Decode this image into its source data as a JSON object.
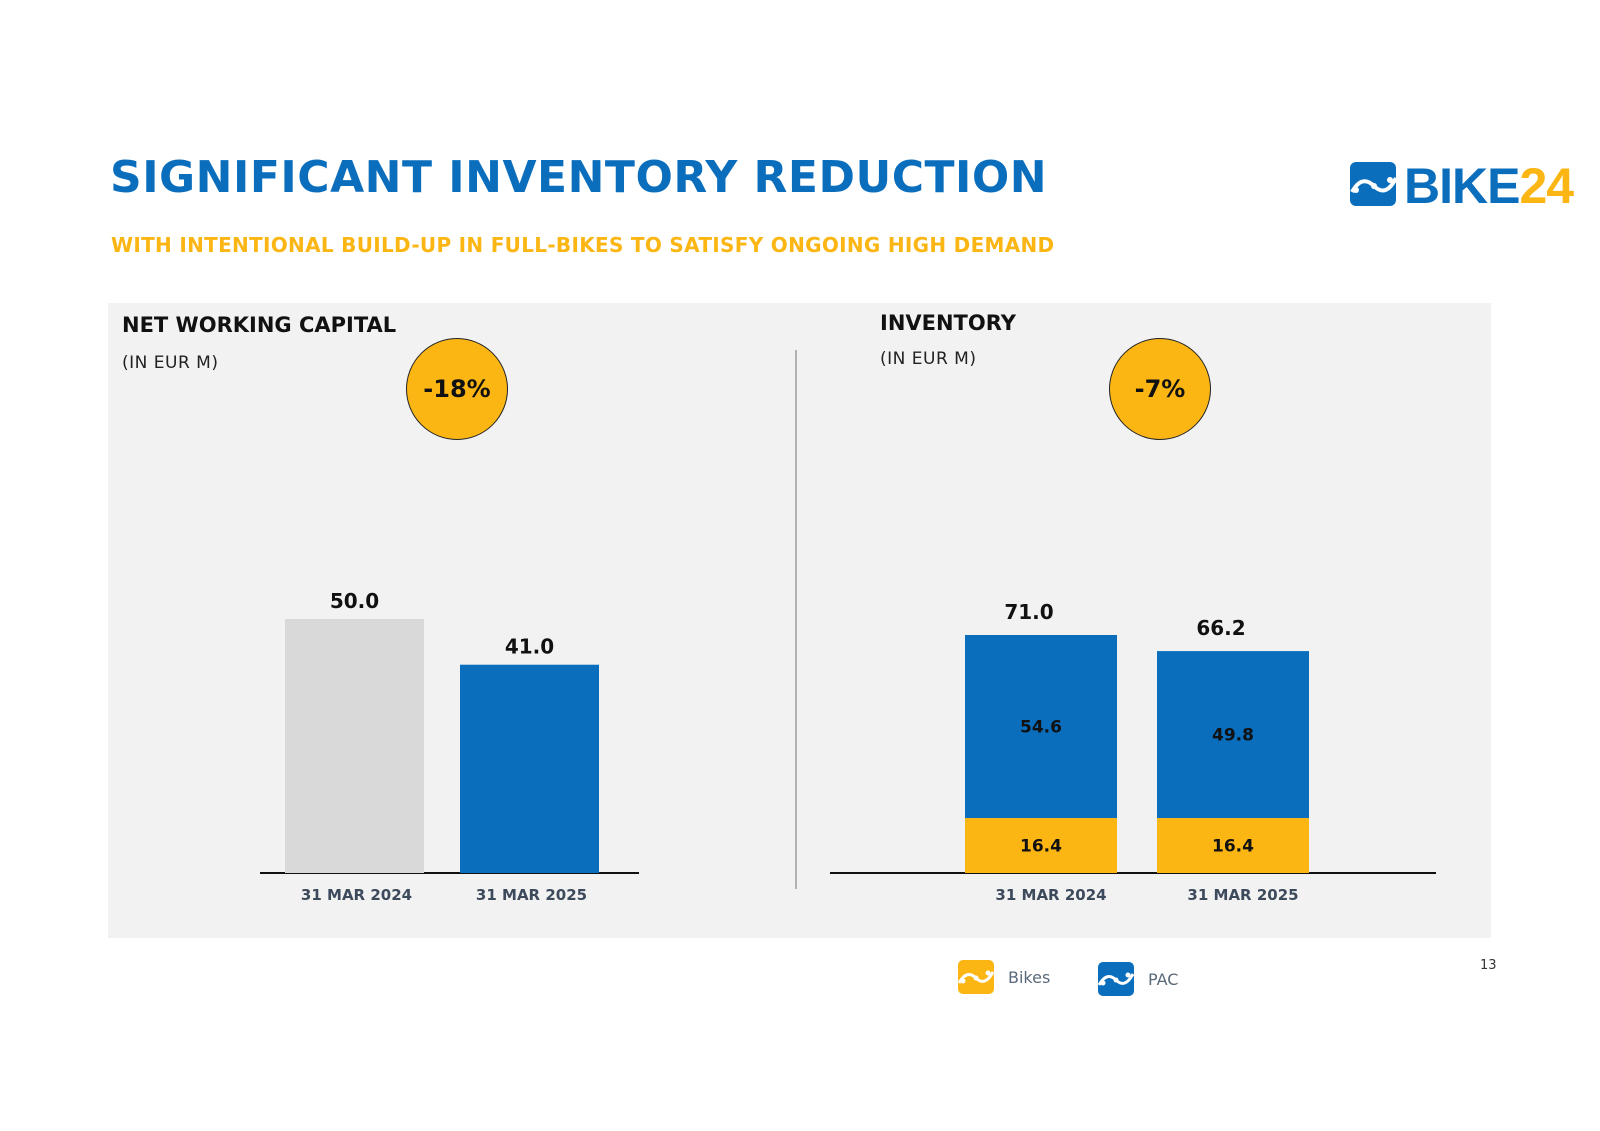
{
  "header": {
    "title": "SIGNIFICANT INVENTORY REDUCTION",
    "subtitle": "WITH INTENTIONAL BUILD-UP IN FULL-BIKES TO SATISFY ONGOING HIGH DEMAND",
    "logo_text_a": "BIKE",
    "logo_text_b": "24"
  },
  "colors": {
    "brand_blue": "#0a6ebd",
    "brand_yellow": "#fbb614",
    "prior_grey": "#d9d9d9"
  },
  "panels": {
    "nwc": {
      "title": "NET WORKING CAPITAL",
      "unit": "(IN EUR M)",
      "badge": "-18%"
    },
    "inventory": {
      "title": "INVENTORY",
      "unit": "(IN EUR M)",
      "badge": "-7%"
    }
  },
  "legend": {
    "bikes": "Bikes",
    "pac": "PAC"
  },
  "page_number": "13",
  "chart_data": [
    {
      "type": "bar",
      "title": "NET WORKING CAPITAL",
      "ylabel": "(IN EUR M)",
      "categories": [
        "31 MAR 2024",
        "31 MAR 2025"
      ],
      "values": [
        50.0,
        41.0
      ],
      "value_labels": [
        "50.0",
        "41.0"
      ],
      "ylim": [
        0,
        50
      ],
      "annotation": "-18%"
    },
    {
      "type": "bar",
      "stacked": true,
      "title": "INVENTORY",
      "ylabel": "(IN EUR M)",
      "categories": [
        "31 MAR 2024",
        "31 MAR 2025"
      ],
      "series": [
        {
          "name": "Bikes",
          "values": [
            16.4,
            16.4
          ],
          "labels": [
            "16.4",
            "16.4"
          ]
        },
        {
          "name": "PAC",
          "values": [
            54.6,
            49.8
          ],
          "labels": [
            "54.6",
            "49.8"
          ]
        }
      ],
      "totals": [
        71.0,
        66.2
      ],
      "total_labels": [
        "71.0",
        "66.2"
      ],
      "ylim": [
        0,
        71
      ],
      "annotation": "-7%"
    }
  ]
}
